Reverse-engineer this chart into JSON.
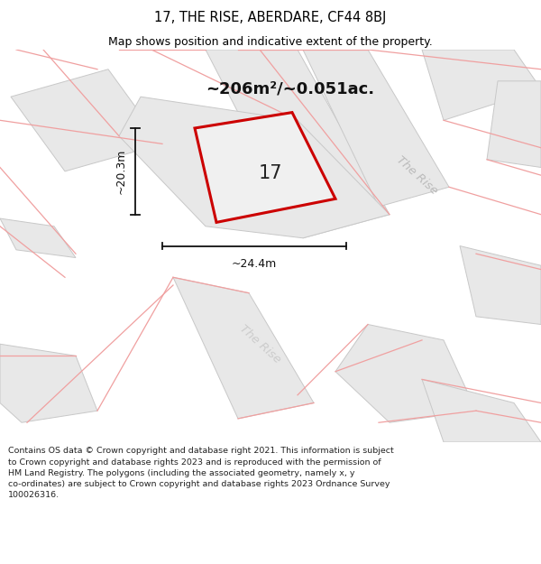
{
  "title": "17, THE RISE, ABERDARE, CF44 8BJ",
  "subtitle": "Map shows position and indicative extent of the property.",
  "area_text": "~206m²/~0.051ac.",
  "dim_width": "~24.4m",
  "dim_height": "~20.3m",
  "plot_label": "17",
  "footer": "Contains OS data © Crown copyright and database right 2021. This information is subject\nto Crown copyright and database rights 2023 and is reproduced with the permission of\nHM Land Registry. The polygons (including the associated geometry, namely x, y\nco-ordinates) are subject to Crown copyright and database rights 2023 Ordnance Survey\n100026316.",
  "bg_color": "#ffffff",
  "map_bg": "#ffffff",
  "title_color": "#000000",
  "block_fill": "#e8e8e8",
  "block_stroke": "#c8c8c8",
  "pink_line": "#f0a0a0",
  "plot_fill": "#ececec",
  "plot_stroke": "#cc0000",
  "dim_color": "#111111",
  "road_label_color": "#bbbbbb",
  "street_name": "The Rise"
}
